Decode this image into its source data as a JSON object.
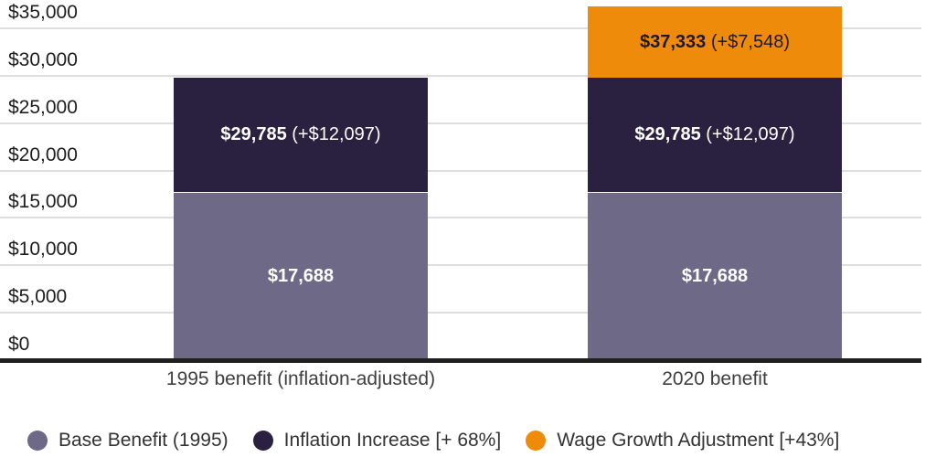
{
  "chart_data": {
    "type": "bar",
    "stacked": true,
    "grid": true,
    "legend_position": "bottom",
    "categories": [
      "1995 benefit (inflation-adjusted)",
      "2020 benefit"
    ],
    "totals": [
      29785,
      37333
    ],
    "series": [
      {
        "name": "Base Benefit (1995)",
        "color": "#6f6988",
        "values": [
          17688,
          17688
        ],
        "labels": [
          {
            "bold": "$17,688",
            "rest": "",
            "text_color": "#ffffff"
          },
          {
            "bold": "$17,688",
            "rest": "",
            "text_color": "#ffffff"
          }
        ]
      },
      {
        "name": "Inflation Increase [+ 68%]",
        "color": "#2a2141",
        "values": [
          12097,
          12097
        ],
        "labels": [
          {
            "bold": "$29,785",
            "rest": "(+$12,097)",
            "text_color": "#ffffff"
          },
          {
            "bold": "$29,785",
            "rest": "(+$12,097)",
            "text_color": "#ffffff"
          }
        ]
      },
      {
        "name": "Wage Growth Adjustment [+43%]",
        "color": "#ef8b0a",
        "values": [
          0,
          7548
        ],
        "labels": [
          null,
          {
            "bold": "$37,333",
            "rest": "(+$7,548)",
            "text_color": "#1e1833"
          }
        ]
      }
    ],
    "y_axis": {
      "ylim": [
        0,
        35000
      ],
      "tick_step": 5000,
      "ticks": [
        {
          "label": "$35,000",
          "value": 35000
        },
        {
          "label": "$30,000",
          "value": 30000
        },
        {
          "label": "$25,000",
          "value": 25000
        },
        {
          "label": "$20,000",
          "value": 20000
        },
        {
          "label": "$15,000",
          "value": 15000
        },
        {
          "label": "$10,000",
          "value": 10000
        },
        {
          "label": "$5,000",
          "value": 5000
        },
        {
          "label": "$0",
          "value": 0
        }
      ]
    },
    "colors": {
      "gridline": "#dedede",
      "axis_line": "#1f1f1f",
      "tick_label": "#1d1d1d",
      "x_label": "#3f3f3f",
      "legend_text": "#333333",
      "background": "#ffffff"
    }
  }
}
